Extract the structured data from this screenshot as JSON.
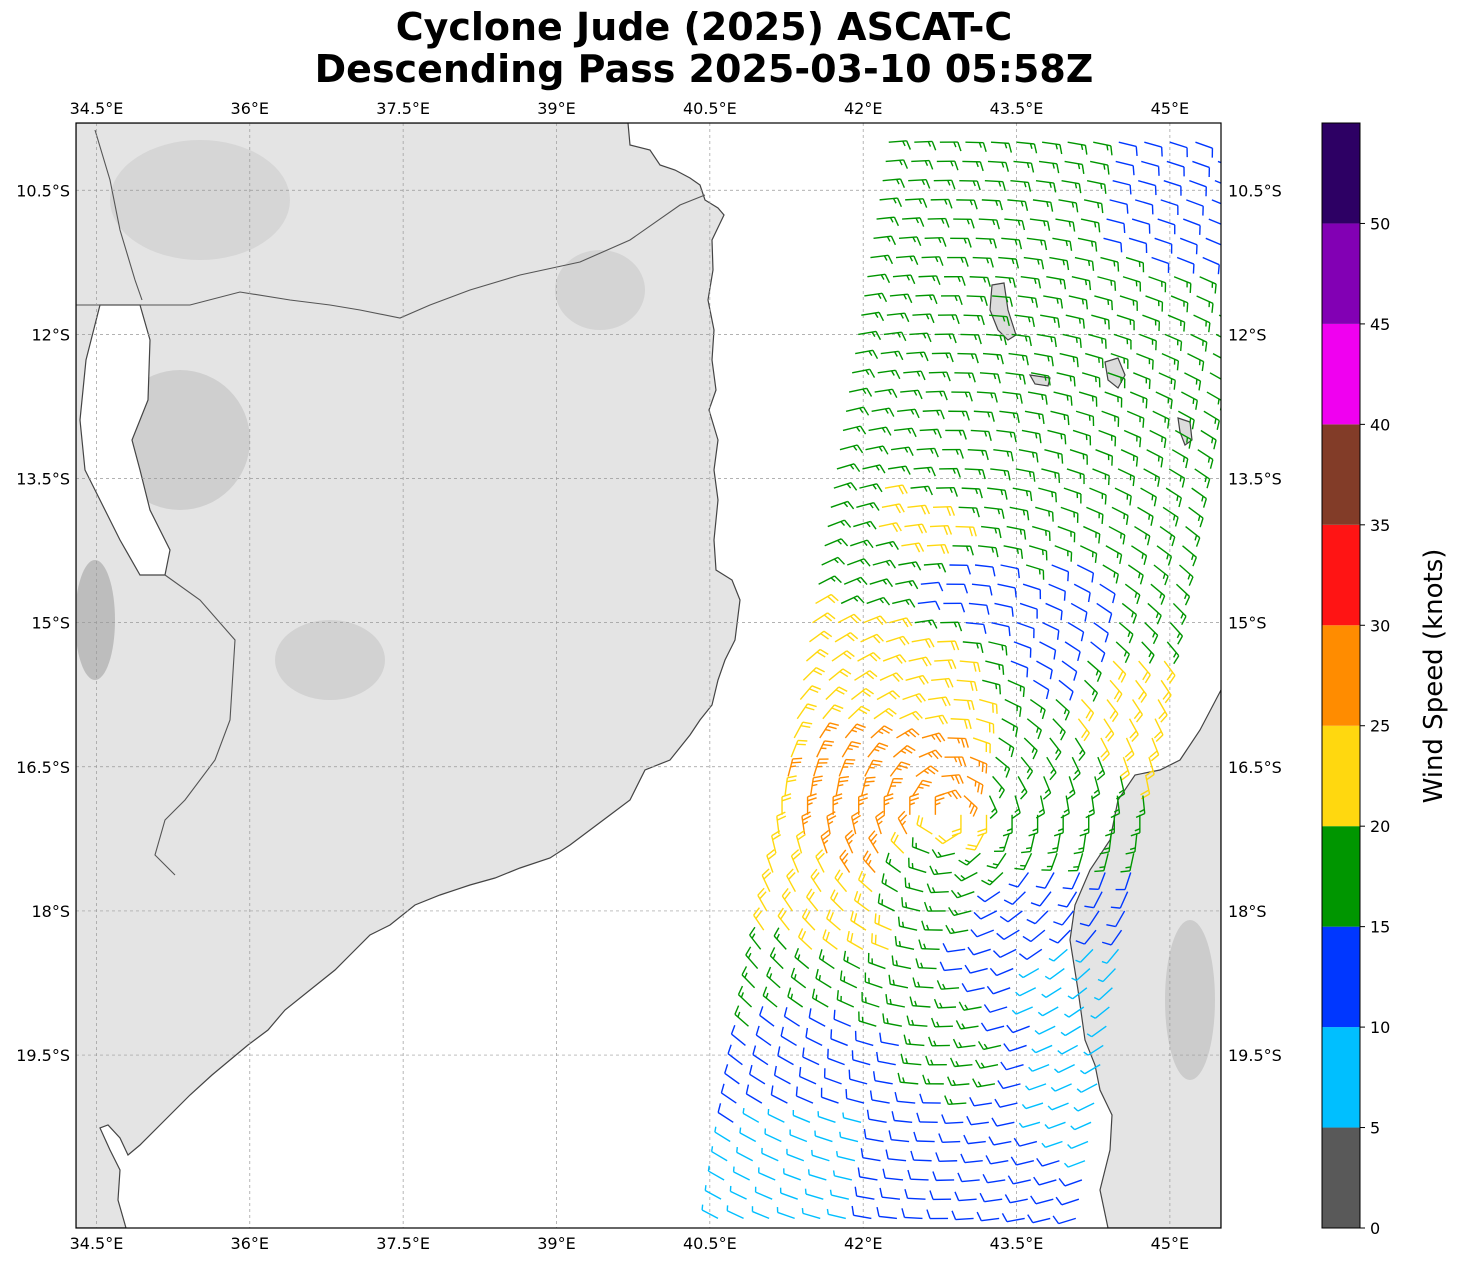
{
  "title": {
    "line1": "Cyclone Jude (2025) ASCAT-C",
    "line2": "Descending Pass 2025-03-10 05:58Z"
  },
  "map": {
    "lon_range": [
      34.3,
      45.5
    ],
    "lat_range": [
      -21.3,
      -9.8
    ],
    "lon_ticks": [
      {
        "value": 34.5,
        "label": "34.5°E"
      },
      {
        "value": 36.0,
        "label": "36°E"
      },
      {
        "value": 37.5,
        "label": "37.5°E"
      },
      {
        "value": 39.0,
        "label": "39°E"
      },
      {
        "value": 40.5,
        "label": "40.5°E"
      },
      {
        "value": 42.0,
        "label": "42°E"
      },
      {
        "value": 43.5,
        "label": "43.5°E"
      },
      {
        "value": 45.0,
        "label": "45°E"
      }
    ],
    "lat_ticks": [
      {
        "value": -10.5,
        "label": "10.5°S"
      },
      {
        "value": -12.0,
        "label": "12°S"
      },
      {
        "value": -13.5,
        "label": "13.5°S"
      },
      {
        "value": -15.0,
        "label": "15°S"
      },
      {
        "value": -16.5,
        "label": "16.5°S"
      },
      {
        "value": -18.0,
        "label": "18°S"
      },
      {
        "value": -19.5,
        "label": "19.5°S"
      }
    ],
    "gridlines": true,
    "land_color": "#e4e4e4",
    "ocean_color": "#ffffff",
    "coastline_color": "#444444"
  },
  "colorbar": {
    "label": "Wind Speed (knots)",
    "bins": [
      {
        "from": 0,
        "to": 5,
        "color": "#595959"
      },
      {
        "from": 5,
        "to": 10,
        "color": "#00bfff"
      },
      {
        "from": 10,
        "to": 15,
        "color": "#0037ff"
      },
      {
        "from": 15,
        "to": 20,
        "color": "#009600"
      },
      {
        "from": 20,
        "to": 25,
        "color": "#ffd80f"
      },
      {
        "from": 25,
        "to": 30,
        "color": "#ff8c00"
      },
      {
        "from": 30,
        "to": 35,
        "color": "#ff1414"
      },
      {
        "from": 35,
        "to": 40,
        "color": "#823c28"
      },
      {
        "from": 40,
        "to": 45,
        "color": "#f000f0"
      },
      {
        "from": 45,
        "to": 50,
        "color": "#8200b4"
      },
      {
        "from": 50,
        "to": 55,
        "color": "#2d0064"
      }
    ],
    "ticks": [
      "0",
      "5",
      "10",
      "15",
      "20",
      "25",
      "30",
      "35",
      "40",
      "45",
      "50"
    ]
  },
  "chart_data": {
    "type": "scatter",
    "title": "Cyclone Jude (2025) ASCAT-C Descending Pass 2025-03-10 05:58Z",
    "xlabel": "",
    "ylabel": "",
    "value_label": "Wind Speed (knots)",
    "swath_center_lon_at_north": 44.0,
    "swath_center_lon_at_south": 42.3,
    "storm_center_approx": {
      "lon": 42.8,
      "lat": -17.0
    },
    "description_values": {
      "max_wind_knots_observed": 28,
      "min_wind_knots_observed": 5
    },
    "samples": [
      {
        "lon": 43.8,
        "lat": -10.5,
        "speed": 17
      },
      {
        "lon": 44.8,
        "lat": -10.5,
        "speed": 13
      },
      {
        "lon": 43.4,
        "lat": -12.0,
        "speed": 17
      },
      {
        "lon": 44.6,
        "lat": -12.0,
        "speed": 17
      },
      {
        "lon": 43.0,
        "lat": -13.5,
        "speed": 17
      },
      {
        "lon": 42.7,
        "lat": -14.0,
        "speed": 22
      },
      {
        "lon": 42.9,
        "lat": -14.5,
        "speed": 13
      },
      {
        "lon": 43.9,
        "lat": -15.2,
        "speed": 13
      },
      {
        "lon": 42.4,
        "lat": -15.6,
        "speed": 22
      },
      {
        "lon": 44.5,
        "lat": -15.8,
        "speed": 22
      },
      {
        "lon": 42.3,
        "lat": -16.5,
        "speed": 27
      },
      {
        "lon": 42.7,
        "lat": -16.5,
        "speed": 27
      },
      {
        "lon": 43.6,
        "lat": -16.5,
        "speed": 17
      },
      {
        "lon": 42.1,
        "lat": -17.3,
        "speed": 27
      },
      {
        "lon": 42.6,
        "lat": -17.8,
        "speed": 17
      },
      {
        "lon": 41.9,
        "lat": -18.2,
        "speed": 22
      },
      {
        "lon": 43.6,
        "lat": -18.3,
        "speed": 13
      },
      {
        "lon": 41.9,
        "lat": -18.8,
        "speed": 17
      },
      {
        "lon": 43.9,
        "lat": -18.7,
        "speed": 8
      },
      {
        "lon": 41.8,
        "lat": -19.5,
        "speed": 13
      },
      {
        "lon": 43.0,
        "lat": -19.5,
        "speed": 17
      },
      {
        "lon": 44.0,
        "lat": -19.7,
        "speed": 8
      },
      {
        "lon": 41.6,
        "lat": -20.5,
        "speed": 8
      },
      {
        "lon": 42.8,
        "lat": -20.6,
        "speed": 13
      }
    ]
  }
}
